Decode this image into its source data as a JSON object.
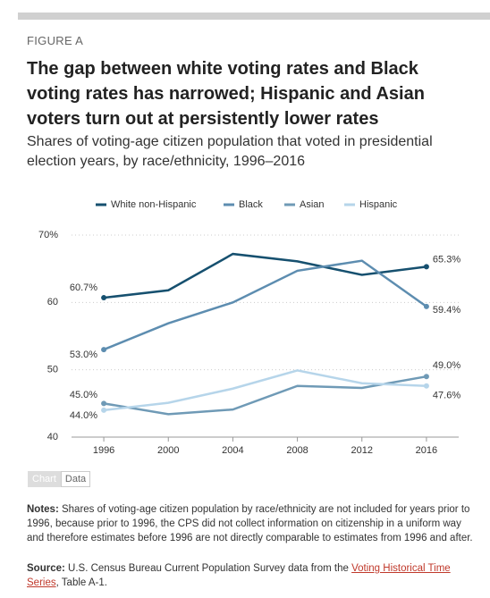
{
  "chart_data": {
    "type": "line",
    "figure_label": "FIGURE A",
    "title": "The gap between white voting rates and Black voting rates has narrowed; Hispanic and Asian voters turn out at persistently lower rates",
    "subtitle": "Shares of voting-age citizen population that voted in presidential election years, by race/ethnicity, 1996–2016",
    "x": [
      1996,
      2000,
      2004,
      2008,
      2012,
      2016
    ],
    "xlim": [
      1994,
      2018
    ],
    "xticks": [
      1996,
      2000,
      2004,
      2008,
      2012,
      2016
    ],
    "ylim": [
      40,
      70
    ],
    "yticks": [
      {
        "value": 70,
        "label": "70%"
      },
      60,
      50,
      40
    ],
    "grid": true,
    "legend": "top",
    "series": [
      {
        "name": "White non-Hispanic",
        "color": "#16506f",
        "values": [
          60.7,
          61.8,
          67.2,
          66.1,
          64.1,
          65.3
        ],
        "value_labels": [
          "60.7%",
          null,
          null,
          null,
          null,
          "65.3%"
        ]
      },
      {
        "name": "Black",
        "color": "#5d8db0",
        "values": [
          53.0,
          56.9,
          60.0,
          64.7,
          66.2,
          59.4
        ],
        "value_labels": [
          "53.0%",
          null,
          null,
          null,
          null,
          "59.4%"
        ]
      },
      {
        "name": "Asian",
        "color": "#6f9ab6",
        "values": [
          45.0,
          43.4,
          44.1,
          47.6,
          47.3,
          49.0
        ],
        "value_labels": [
          "45.0%",
          null,
          null,
          null,
          null,
          "49.0%"
        ]
      },
      {
        "name": "Hispanic",
        "color": "#b6d5ea",
        "values": [
          44.0,
          45.1,
          47.2,
          49.9,
          48.0,
          47.6
        ],
        "value_labels": [
          "44.0%",
          null,
          null,
          null,
          null,
          "47.6%"
        ]
      }
    ],
    "tabs": [
      "Chart",
      "Data"
    ],
    "notes_label": "Notes:",
    "notes": "Shares of voting-age citizen population by race/ethnicity are not included for years prior to 1996, because prior to 1996, the CPS did not collect information on citizenship in a uniform way and therefore estimates before 1996 are not directly comparable to estimates from 1996 and after.",
    "source_label": "Source:",
    "source_text": "U.S. Census Bureau Current Population Survey data from the",
    "source_link": "Voting Historical Time Series",
    "source_tail": ", Table A-1."
  }
}
